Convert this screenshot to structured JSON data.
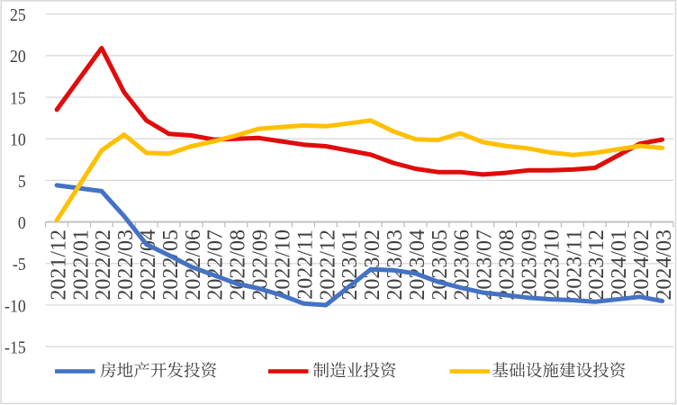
{
  "chart_data": {
    "type": "line",
    "title": "",
    "categories": [
      "2021/12",
      "2022/01",
      "2022/02",
      "2022/03",
      "2022/04",
      "2022/05",
      "2022/06",
      "2022/07",
      "2022/08",
      "2022/09",
      "2022/10",
      "2022/11",
      "2022/12",
      "2023/01",
      "2023/02",
      "2023/03",
      "2023/04",
      "2023/05",
      "2023/06",
      "2023/07",
      "2023/08",
      "2023/09",
      "2023/10",
      "2023/11",
      "2023/12",
      "2024/01",
      "2024/02",
      "2024/03"
    ],
    "series": [
      {
        "name": "房地产开发投资",
        "key": "real-estate-development-investment",
        "color": "#4472C4",
        "values": [
          4.4,
          null,
          3.7,
          0.7,
          -2.7,
          -4.0,
          -5.4,
          -6.4,
          -7.4,
          -8.0,
          -8.8,
          -9.8,
          -10.0,
          null,
          -5.7,
          -5.8,
          -6.2,
          -7.2,
          -7.9,
          -8.5,
          -8.8,
          -9.1,
          -9.3,
          -9.4,
          -9.6,
          null,
          -9.0,
          -9.5
        ]
      },
      {
        "name": "制造业投资",
        "key": "manufacturing-investment",
        "color": "#E00C0C",
        "values": [
          13.5,
          null,
          20.9,
          15.6,
          12.2,
          10.6,
          10.4,
          9.9,
          10.0,
          10.1,
          9.7,
          9.3,
          9.1,
          null,
          8.1,
          7.1,
          6.4,
          6.0,
          6.0,
          5.7,
          5.9,
          6.2,
          6.2,
          6.3,
          6.5,
          null,
          9.4,
          9.9
        ]
      },
      {
        "name": "基础设施建设投资",
        "key": "infrastructure-construction-investment",
        "color": "#FFC000",
        "values": [
          0.2,
          null,
          8.6,
          10.5,
          8.3,
          8.2,
          9.1,
          9.7,
          10.4,
          11.2,
          11.4,
          11.6,
          11.5,
          null,
          12.2,
          10.9,
          9.95,
          9.85,
          10.65,
          9.6,
          9.15,
          8.85,
          8.35,
          8.05,
          8.3,
          null,
          9.15,
          8.9
        ]
      }
    ],
    "xlabel": "",
    "ylabel": "",
    "ylim": [
      -15,
      25
    ],
    "y_ticks": [
      25,
      20,
      15,
      10,
      5,
      0,
      -5,
      -10,
      -15
    ],
    "grid": "horizontal-only",
    "legend_position": "bottom",
    "colors": {
      "background": "#FFFFFF",
      "chart_border": "#D9D9D9",
      "gridline": "#D9D9D9",
      "axis_line": "#BFBFBF",
      "tick_mark": "#BFBFBF",
      "axis_label_text": "#3F3F3F"
    }
  }
}
